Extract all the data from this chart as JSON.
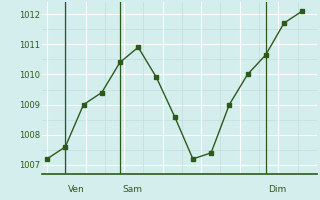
{
  "x_values": [
    0,
    1,
    2,
    3,
    4,
    5,
    6,
    7,
    8,
    9,
    10,
    11,
    12,
    13,
    14
  ],
  "y_values": [
    1007.2,
    1007.6,
    1009.0,
    1009.4,
    1010.4,
    1010.9,
    1009.9,
    1008.6,
    1007.2,
    1007.4,
    1009.0,
    1010.0,
    1010.65,
    1011.7,
    1012.1
  ],
  "vline_positions": [
    1.0,
    4.0,
    12.0
  ],
  "ytick_values": [
    1007,
    1008,
    1009,
    1010,
    1011,
    1012
  ],
  "ylim": [
    1006.7,
    1012.4
  ],
  "xlim": [
    -0.3,
    14.8
  ],
  "line_color": "#2d5a1b",
  "marker_color": "#2d5a1b",
  "bg_color": "#d4eeee",
  "grid_major_color": "#ffffff",
  "grid_minor_color": "#c0dede",
  "tick_label_color": "#2d5a1b",
  "vline_color": "#2d5a1b",
  "bottom_bar_color": "#c0dede",
  "xtick_day_positions": [
    1.0,
    4.0,
    12.0
  ],
  "xtick_day_labels": [
    "Ven",
    "Sam",
    "Dim"
  ]
}
